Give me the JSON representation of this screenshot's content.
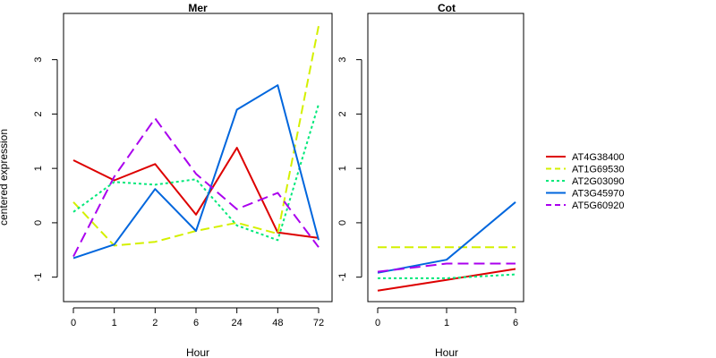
{
  "ylabel": "centered expression",
  "chart_data": [
    {
      "type": "line",
      "title": "Mer",
      "xlabel": "Hour",
      "categories": [
        "0",
        "1",
        "2",
        "6",
        "24",
        "48",
        "72"
      ],
      "yticks": [
        -1,
        0,
        1,
        2,
        3
      ],
      "ylim": [
        -1.45,
        3.85
      ],
      "series": [
        {
          "name": "AT4G38400",
          "color": "#dd0000",
          "dash": "solid",
          "values": [
            1.15,
            0.78,
            1.08,
            0.15,
            1.38,
            -0.18,
            -0.28
          ]
        },
        {
          "name": "AT1G69530",
          "color": "#d4f000",
          "dash": "dashed",
          "values": [
            0.38,
            -0.42,
            -0.35,
            -0.15,
            0.0,
            -0.2,
            3.62
          ]
        },
        {
          "name": "AT2G03090",
          "color": "#00e87a",
          "dash": "dotted",
          "values": [
            0.2,
            0.75,
            0.7,
            0.8,
            -0.05,
            -0.32,
            2.18
          ]
        },
        {
          "name": "AT3G45970",
          "color": "#0066dd",
          "dash": "solid",
          "values": [
            -0.65,
            -0.4,
            0.62,
            -0.15,
            2.08,
            2.53,
            -0.32
          ]
        },
        {
          "name": "AT5G60920",
          "color": "#aa00ee",
          "dash": "longdash",
          "values": [
            -0.62,
            0.85,
            1.92,
            0.9,
            0.25,
            0.55,
            -0.45
          ]
        }
      ]
    },
    {
      "type": "line",
      "title": "Cot",
      "xlabel": "Hour",
      "categories": [
        "0",
        "1",
        "6"
      ],
      "yticks": [
        -1,
        0,
        1,
        2,
        3
      ],
      "ylim": [
        -1.45,
        3.85
      ],
      "series": [
        {
          "name": "AT4G38400",
          "color": "#dd0000",
          "dash": "solid",
          "values": [
            -1.25,
            -1.05,
            -0.85
          ]
        },
        {
          "name": "AT1G69530",
          "color": "#d4f000",
          "dash": "dashed",
          "values": [
            -0.45,
            -0.45,
            -0.45
          ]
        },
        {
          "name": "AT2G03090",
          "color": "#00e87a",
          "dash": "dotted",
          "values": [
            -1.02,
            -1.02,
            -0.95
          ]
        },
        {
          "name": "AT3G45970",
          "color": "#0066dd",
          "dash": "solid",
          "values": [
            -0.92,
            -0.68,
            0.38
          ]
        },
        {
          "name": "AT5G60920",
          "color": "#aa00ee",
          "dash": "longdash",
          "values": [
            -0.9,
            -0.75,
            -0.75
          ]
        }
      ]
    }
  ],
  "legend": {
    "position": "right",
    "entries": [
      {
        "name": "AT4G38400",
        "color": "#dd0000",
        "dash": "solid"
      },
      {
        "name": "AT1G69530",
        "color": "#d4f000",
        "dash": "dashed"
      },
      {
        "name": "AT2G03090",
        "color": "#00e87a",
        "dash": "dotted"
      },
      {
        "name": "AT3G45970",
        "color": "#0066dd",
        "dash": "solid"
      },
      {
        "name": "AT5G60920",
        "color": "#aa00ee",
        "dash": "longdash"
      }
    ]
  }
}
